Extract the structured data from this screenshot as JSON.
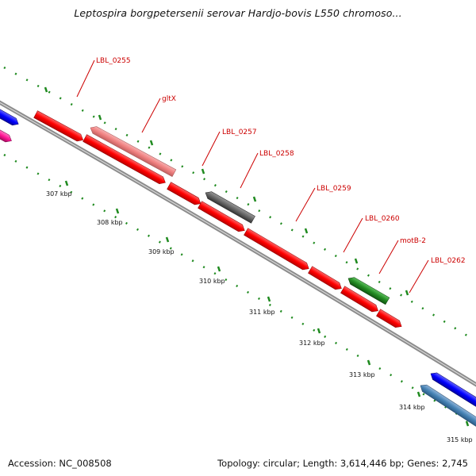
{
  "title": "Leptospira borgpetersenii serovar Hardjo-bovis L550 chromoso...",
  "footer": {
    "accession": "Accession: NC_008508",
    "summary": "Topology: circular; Length: 3,614,446 bp; Genes: 2,745"
  },
  "scale_ticks": [
    "307 kbp",
    "308 kbp",
    "309 kbp",
    "310 kbp",
    "311 kbp",
    "312 kbp",
    "313 kbp",
    "314 kbp",
    "315 kbp"
  ],
  "genes": [
    {
      "name": "LBL_0255",
      "color": "#ff0000"
    },
    {
      "name": "gltX",
      "color": "#f08080"
    },
    {
      "name": "LBL_0257",
      "color": "#ff0000"
    },
    {
      "name": "LBL_0258",
      "color": "#666666"
    },
    {
      "name": "LBL_0259",
      "color": "#ff0000"
    },
    {
      "name": "LBL_0260",
      "color": "#ff0000"
    },
    {
      "name": "motB-2",
      "color": "#228b22"
    },
    {
      "name": "LBL_0262",
      "color": "#ff0000"
    }
  ],
  "colors": {
    "backbone": "#8c8c8c",
    "tick_green": "#1f8a1f",
    "gene_red": "#ff0000",
    "gene_blue": "#0000ff",
    "gene_steelblue": "#4682b4",
    "gene_magenta": "#ff1493",
    "label_red": "#cc0000"
  }
}
